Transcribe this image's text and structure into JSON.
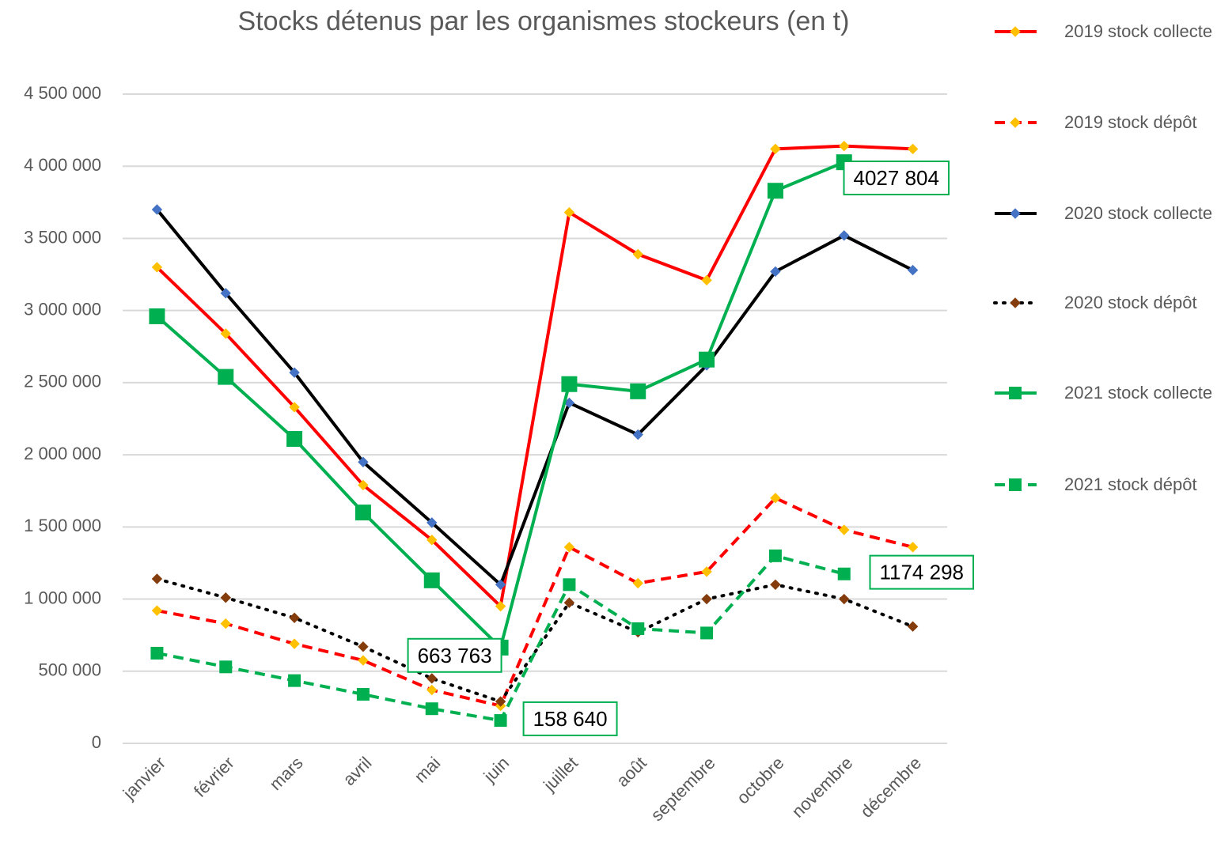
{
  "chart_data": {
    "type": "line",
    "title": "Stocks détenus par les organismes stockeurs (en t)",
    "categories": [
      "janvier",
      "février",
      "mars",
      "avril",
      "mai",
      "juin",
      "juillet",
      "août",
      "septembre",
      "octobre",
      "novembre",
      "décembre"
    ],
    "ylim": [
      0,
      4500000
    ],
    "yticks": [
      0,
      {
        "value": 500000,
        "label": "500 000"
      },
      {
        "value": 1000000,
        "label": "1 000 000"
      },
      {
        "value": 1500000,
        "label": "1 500 000"
      },
      {
        "value": 2000000,
        "label": "2 000 000"
      },
      {
        "value": 2500000,
        "label": "2 500 000"
      },
      {
        "value": 3000000,
        "label": "3 000 000"
      },
      {
        "value": 3500000,
        "label": "3 500 000"
      },
      {
        "value": 4000000,
        "label": "4 000 000"
      },
      {
        "value": 4500000,
        "label": "4 500 000"
      }
    ],
    "grid": true,
    "legend": "right",
    "series": [
      {
        "name": "2019 stock collecte",
        "color": "#ff0000",
        "dash": "solid",
        "marker": "diamond",
        "marker_color": "#ffc000",
        "values": [
          3300000,
          2840000,
          2330000,
          1790000,
          1410000,
          950000,
          3680000,
          3390000,
          3210000,
          4120000,
          4140000,
          4120000
        ]
      },
      {
        "name": "2019 stock dépôt",
        "color": "#ff0000",
        "dash": "dashed",
        "marker": "diamond",
        "marker_color": "#ffc000",
        "values": [
          920000,
          830000,
          690000,
          575000,
          370000,
          260000,
          1360000,
          1110000,
          1190000,
          1700000,
          1480000,
          1360000
        ]
      },
      {
        "name": "2020 stock collecte",
        "color": "#000000",
        "dash": "solid",
        "marker": "diamond",
        "marker_color": "#4472c4",
        "values": [
          3700000,
          3120000,
          2570000,
          1950000,
          1530000,
          1100000,
          2360000,
          2140000,
          2620000,
          3270000,
          3520000,
          3280000
        ]
      },
      {
        "name": "2020 stock dépôt",
        "color": "#000000",
        "dash": "dotted",
        "marker": "diamond",
        "marker_color": "#843c0c",
        "values": [
          1140000,
          1010000,
          870000,
          670000,
          450000,
          290000,
          975000,
          770000,
          1000000,
          1100000,
          1000000,
          810000
        ]
      },
      {
        "name": "2021 stock collecte",
        "color": "#00b050",
        "dash": "solid",
        "marker": "square",
        "marker_color": "#00b050",
        "values": [
          2960000,
          2540000,
          2110000,
          1600000,
          1130000,
          663763,
          2490000,
          2440000,
          2660000,
          3830000,
          4027804,
          null
        ],
        "value_labels": [
          null,
          null,
          null,
          null,
          null,
          "663 763",
          null,
          null,
          null,
          null,
          "4027 804",
          null
        ]
      },
      {
        "name": "2021 stock dépôt",
        "color": "#00b050",
        "dash": "dashed",
        "marker": "square",
        "marker_color": "#00b050",
        "values": [
          625000,
          530000,
          435000,
          340000,
          240000,
          158640,
          1100000,
          795000,
          765000,
          1300000,
          1174298,
          null
        ],
        "value_labels": [
          null,
          null,
          null,
          null,
          null,
          "158 640",
          null,
          null,
          null,
          null,
          "1174 298",
          null
        ]
      }
    ]
  }
}
